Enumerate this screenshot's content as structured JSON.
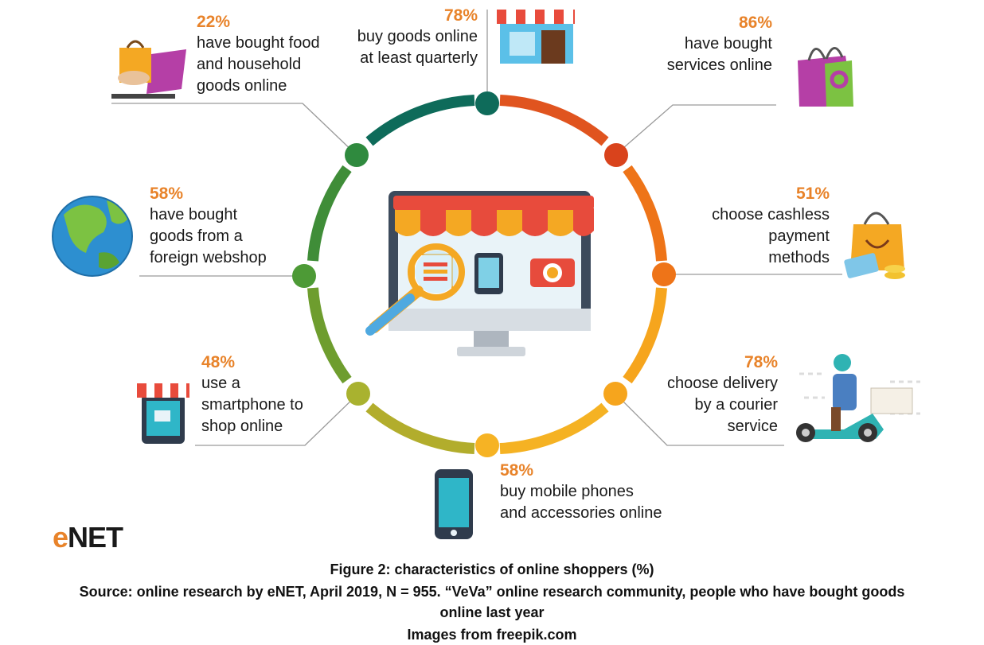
{
  "colors": {
    "accent": "#e8832a",
    "ring_top": "#0e6b5a",
    "ring_right_top": "#e0541f",
    "ring_right": "#f28a1c",
    "ring_bottom": "#f6a51d",
    "ring_left_bottom": "#9bb83a",
    "ring_left": "#3f9a3c"
  },
  "items": [
    {
      "pct": "22%",
      "desc": "have bought food\nand household\ngoods online",
      "icon": "shopping-bag-laptop-icon"
    },
    {
      "pct": "78%",
      "desc": "buy goods online\nat least quarterly",
      "icon": "storefront-icon"
    },
    {
      "pct": "86%",
      "desc": "have bought\nservices online",
      "icon": "shopping-bag-icon"
    },
    {
      "pct": "51%",
      "desc": "choose cashless\npayment\nmethods",
      "icon": "bag-card-coins-icon"
    },
    {
      "pct": "78%",
      "desc": "choose delivery\nby a courier\nservice",
      "icon": "courier-scooter-icon"
    },
    {
      "pct": "58%",
      "desc": "buy mobile phones\nand accessories online",
      "icon": "smartphone-icon"
    },
    {
      "pct": "48%",
      "desc": "use a\nsmartphone to\nshop online",
      "icon": "phone-shop-icon"
    },
    {
      "pct": "58%",
      "desc": "have bought\ngoods from a\nforeign webshop",
      "icon": "globe-icon"
    }
  ],
  "logo": {
    "text_e": "e",
    "text_rest": "NET"
  },
  "caption": {
    "line1": "Figure 2: characteristics of online shoppers (%)",
    "line2": "Source: online research by eNET, April 2019, N = 955. “VeVa” online research community, people who have bought goods",
    "line3": "online last year",
    "line4": "Images from freepik.com"
  }
}
